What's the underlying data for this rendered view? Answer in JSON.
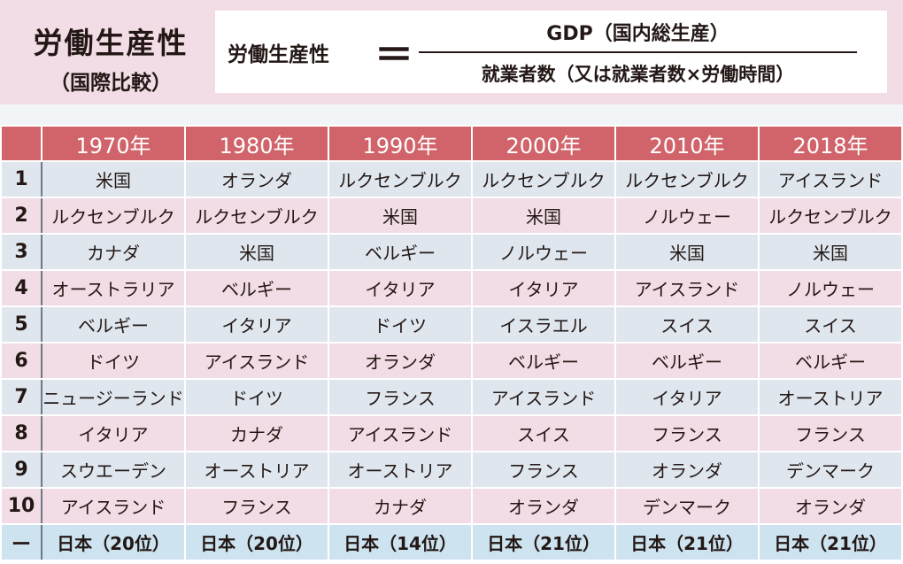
{
  "title": {
    "main": "労働生産性",
    "sub": "（国際比較）"
  },
  "formula": {
    "lhs": "労働生産性",
    "equals": "＝",
    "numerator": "GDP（国内総生産）",
    "denominator": "就業者数（又は就業者数×労働時間）"
  },
  "table": {
    "headers": [
      "",
      "1970年",
      "1980年",
      "1990年",
      "2000年",
      "2010年",
      "2018年"
    ],
    "rows": [
      [
        "1",
        "米国",
        "オランダ",
        "ルクセンブルク",
        "ルクセンブルク",
        "ルクセンブルク",
        "アイスランド"
      ],
      [
        "2",
        "ルクセンブルク",
        "ルクセンブルク",
        "米国",
        "米国",
        "ノルウェー",
        "ルクセンブルク"
      ],
      [
        "3",
        "カナダ",
        "米国",
        "ベルギー",
        "ノルウェー",
        "米国",
        "米国"
      ],
      [
        "4",
        "オーストラリア",
        "ベルギー",
        "イタリア",
        "イタリア",
        "アイスランド",
        "ノルウェー"
      ],
      [
        "5",
        "ベルギー",
        "イタリア",
        "ドイツ",
        "イスラエル",
        "スイス",
        "スイス"
      ],
      [
        "6",
        "ドイツ",
        "アイスランド",
        "オランダ",
        "ベルギー",
        "ベルギー",
        "ベルギー"
      ],
      [
        "7",
        "ニュージーランド",
        "ドイツ",
        "フランス",
        "アイスランド",
        "イタリア",
        "オーストリア"
      ],
      [
        "8",
        "イタリア",
        "カナダ",
        "アイスランド",
        "スイス",
        "フランス",
        "フランス"
      ],
      [
        "9",
        "スウエーデン",
        "オーストリア",
        "オーストリア",
        "フランス",
        "オランダ",
        "デンマーク"
      ],
      [
        "10",
        "アイスランド",
        "フランス",
        "カナダ",
        "オランダ",
        "デンマーク",
        "オランダ"
      ],
      [
        "ー",
        "日本（20位）",
        "日本（20位）",
        "日本（14位）",
        "日本（21位）",
        "日本（21位）",
        "日本（21位）"
      ]
    ]
  }
}
